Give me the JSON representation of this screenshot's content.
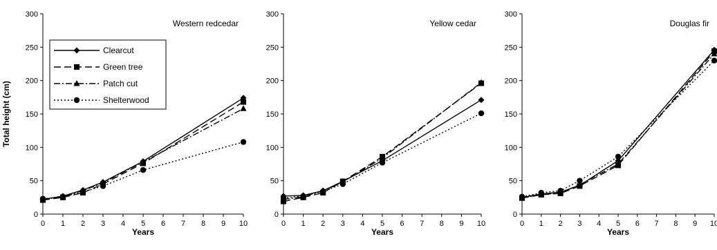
{
  "chart_data": [
    {
      "type": "line",
      "title": "Western redcedar",
      "xlabel": "Years",
      "ylabel": "Total height (cm)",
      "xlim": [
        0,
        10
      ],
      "ylim": [
        0,
        300
      ],
      "xticks": [
        0,
        1,
        2,
        3,
        4,
        5,
        6,
        7,
        8,
        9,
        10
      ],
      "yticks": [
        0,
        50,
        100,
        150,
        200,
        250,
        300
      ],
      "x": [
        0,
        1,
        2,
        3,
        5,
        10
      ],
      "legend": "top-left",
      "series": [
        {
          "name": "Clearcut",
          "values": [
            22,
            27,
            36,
            48,
            79,
            174
          ]
        },
        {
          "name": "Green tree",
          "values": [
            21,
            25,
            32,
            45,
            76,
            168
          ]
        },
        {
          "name": "Patch cut",
          "values": [
            22,
            26,
            35,
            47,
            78,
            158
          ]
        },
        {
          "name": "Shelterwood",
          "values": [
            23,
            26,
            33,
            42,
            66,
            108
          ]
        }
      ]
    },
    {
      "type": "line",
      "title": "Yellow cedar",
      "xlabel": "Years",
      "ylabel": "",
      "xlim": [
        0,
        10
      ],
      "ylim": [
        0,
        300
      ],
      "xticks": [
        0,
        1,
        2,
        3,
        4,
        5,
        6,
        7,
        8,
        9,
        10
      ],
      "yticks": [
        0,
        50,
        100,
        150,
        200,
        250,
        300
      ],
      "x": [
        0,
        1,
        2,
        3,
        5,
        10
      ],
      "series": [
        {
          "name": "Clearcut",
          "values": [
            27,
            28,
            35,
            49,
            80,
            171
          ]
        },
        {
          "name": "Green tree",
          "values": [
            19,
            25,
            32,
            49,
            86,
            196
          ]
        },
        {
          "name": "Patch cut",
          "values": [
            22,
            26,
            35,
            48,
            84,
            197
          ]
        },
        {
          "name": "Shelterwood",
          "values": [
            24,
            27,
            34,
            45,
            77,
            151
          ]
        }
      ]
    },
    {
      "type": "line",
      "title": "Douglas fir",
      "xlabel": "Years",
      "ylabel": "",
      "xlim": [
        0,
        10
      ],
      "ylim": [
        0,
        300
      ],
      "xticks": [
        0,
        1,
        2,
        3,
        4,
        5,
        6,
        7,
        8,
        9,
        10
      ],
      "yticks": [
        0,
        50,
        100,
        150,
        200,
        250,
        300
      ],
      "x": [
        0,
        1,
        2,
        3,
        5,
        10
      ],
      "series": [
        {
          "name": "Clearcut",
          "values": [
            25,
            30,
            33,
            43,
            80,
            246
          ]
        },
        {
          "name": "Green tree",
          "values": [
            24,
            29,
            31,
            42,
            73,
            244
          ]
        },
        {
          "name": "Patch cut",
          "values": [
            24,
            29,
            32,
            44,
            75,
            240
          ]
        },
        {
          "name": "Shelterwood",
          "values": [
            26,
            32,
            35,
            50,
            86,
            230
          ]
        }
      ]
    }
  ],
  "styles": {
    "line_color": "#000000",
    "series_styles": [
      {
        "dash": "solid",
        "marker": "diamond"
      },
      {
        "dash": "long-dash",
        "marker": "square"
      },
      {
        "dash": "dash-dot",
        "marker": "triangle"
      },
      {
        "dash": "dotted",
        "marker": "circle"
      }
    ]
  }
}
